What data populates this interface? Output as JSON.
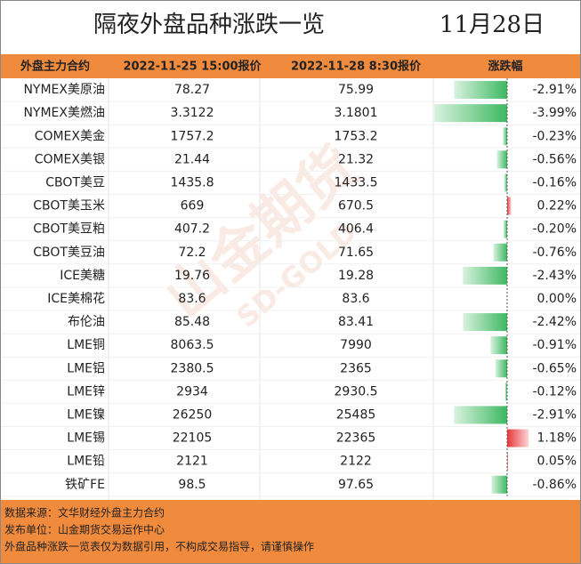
{
  "title": "隔夜外盘品种涨跌一览",
  "date": "11月28日",
  "header": [
    "外盘主力合约",
    "2022-11-25 15:00报价",
    "2022-11-28 8:30报价",
    "涨跌幅"
  ],
  "rows": [
    {
      "name": "NYMEX美原油",
      "price1": "78.27",
      "price2": "75.99",
      "change": {
        "value": -2.91,
        "label": "-2.91%"
      }
    },
    {
      "name": "NYMEX美燃油",
      "price1": "3.3122",
      "price2": "3.1801",
      "change": {
        "value": -3.99,
        "label": "-3.99%"
      }
    },
    {
      "name": "COMEX美金",
      "price1": "1757.2",
      "price2": "1753.2",
      "change": {
        "value": -0.23,
        "label": "-0.23%"
      }
    },
    {
      "name": "COMEX美银",
      "price1": "21.44",
      "price2": "21.32",
      "change": {
        "value": -0.56,
        "label": "-0.56%"
      }
    },
    {
      "name": "CBOT美豆",
      "price1": "1435.8",
      "price2": "1433.5",
      "change": {
        "value": -0.16,
        "label": "-0.16%"
      }
    },
    {
      "name": "CBOT美玉米",
      "price1": "669",
      "price2": "670.5",
      "change": {
        "value": 0.22,
        "label": "0.22%"
      }
    },
    {
      "name": "CBOT美豆粕",
      "price1": "407.2",
      "price2": "406.4",
      "change": {
        "value": -0.2,
        "label": "-0.20%"
      }
    },
    {
      "name": "CBOT美豆油",
      "price1": "72.2",
      "price2": "71.65",
      "change": {
        "value": -0.76,
        "label": "-0.76%"
      }
    },
    {
      "name": "ICE美糖",
      "price1": "19.76",
      "price2": "19.28",
      "change": {
        "value": -2.43,
        "label": "-2.43%"
      }
    },
    {
      "name": "ICE美棉花",
      "price1": "83.6",
      "price2": "83.6",
      "change": {
        "value": 0.0,
        "label": "0.00%"
      }
    },
    {
      "name": "布伦油",
      "price1": "85.48",
      "price2": "83.41",
      "change": {
        "value": -2.42,
        "label": "-2.42%"
      }
    },
    {
      "name": "LME铜",
      "price1": "8063.5",
      "price2": "7990",
      "change": {
        "value": -0.91,
        "label": "-0.91%"
      }
    },
    {
      "name": "LME铝",
      "price1": "2380.5",
      "price2": "2365",
      "change": {
        "value": -0.65,
        "label": "-0.65%"
      }
    },
    {
      "name": "LME锌",
      "price1": "2934",
      "price2": "2930.5",
      "change": {
        "value": -0.12,
        "label": "-0.12%"
      }
    },
    {
      "name": "LME镍",
      "price1": "26250",
      "price2": "25485",
      "change": {
        "value": -2.91,
        "label": "-2.91%"
      }
    },
    {
      "name": "LME锡",
      "price1": "22105",
      "price2": "22365",
      "change": {
        "value": 1.18,
        "label": "1.18%"
      }
    },
    {
      "name": "LME铅",
      "price1": "2121",
      "price2": "2122",
      "change": {
        "value": 0.05,
        "label": "0.05%"
      }
    },
    {
      "name": "铁矿FE",
      "price1": "98.5",
      "price2": "97.65",
      "change": {
        "value": -0.86,
        "label": "-0.86%"
      }
    }
  ],
  "watermark": [
    "山金期货",
    "SD-GOLD"
  ],
  "footer": [
    "数据来源：文华财经外盘主力合约",
    "发布单位：山金期货交易运作中心",
    "外盘品种涨跌一览表仅为数据引用，不构成交易指导，请谨慎操作"
  ]
}
